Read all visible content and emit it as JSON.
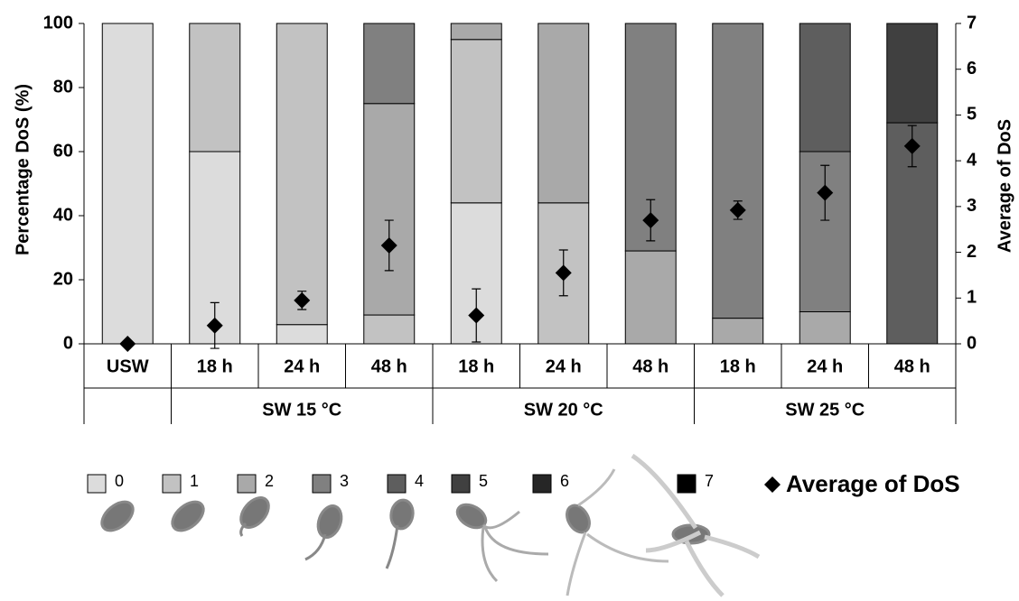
{
  "chart_data": {
    "type": "stacked-bar",
    "y_label": "Percentage DoS (%)",
    "y2_label": "Average of DoS",
    "categories": [
      "USW",
      "18 h",
      "24 h",
      "48 h",
      "18 h",
      "24 h",
      "48 h",
      "18 h",
      "24 h",
      "48 h"
    ],
    "group_labels": [
      null,
      "SW 15 °C",
      "SW 15 °C",
      "SW 15 °C",
      "SW 20 °C",
      "SW 20 °C",
      "SW 20 °C",
      "SW 25 °C",
      "SW 25 °C",
      "SW 25 °C"
    ],
    "ylim": [
      0,
      100
    ],
    "yticks": [
      0,
      20,
      40,
      60,
      80,
      100
    ],
    "y2lim": [
      0,
      7
    ],
    "y2ticks": [
      0,
      1,
      2,
      3,
      4,
      5,
      6,
      7
    ],
    "series": [
      {
        "name": "0",
        "color": "#dcdcdc",
        "values": [
          100,
          60,
          6,
          0,
          44,
          0,
          0,
          0,
          0,
          0
        ]
      },
      {
        "name": "1",
        "color": "#c2c2c2",
        "values": [
          0,
          40,
          94,
          9,
          51,
          44,
          0,
          0,
          0,
          0
        ]
      },
      {
        "name": "2",
        "color": "#a9a9a9",
        "values": [
          0,
          0,
          0,
          66,
          5,
          56,
          29,
          8,
          10,
          0
        ]
      },
      {
        "name": "3",
        "color": "#808080",
        "values": [
          0,
          0,
          0,
          25,
          0,
          0,
          71,
          92,
          50,
          0
        ]
      },
      {
        "name": "4",
        "color": "#5e5e5e",
        "values": [
          0,
          0,
          0,
          0,
          0,
          0,
          0,
          0,
          40,
          69
        ]
      },
      {
        "name": "5",
        "color": "#404040",
        "values": [
          0,
          0,
          0,
          0,
          0,
          0,
          0,
          0,
          0,
          31
        ]
      },
      {
        "name": "6",
        "color": "#262626",
        "values": [
          0,
          0,
          0,
          0,
          0,
          0,
          0,
          0,
          0,
          0
        ]
      },
      {
        "name": "7",
        "color": "#000000",
        "values": [
          0,
          0,
          0,
          0,
          0,
          0,
          0,
          0,
          0,
          0
        ]
      },
      {
        "name": "Average of DoS",
        "color": "#000000",
        "axis": "y2",
        "marker": "diamond",
        "values": [
          0,
          0.4,
          0.95,
          2.15,
          0.62,
          1.55,
          2.7,
          2.92,
          3.3,
          4.32
        ],
        "errors": [
          0,
          0.5,
          0.2,
          0.55,
          0.58,
          0.5,
          0.45,
          0.2,
          0.6,
          0.45
        ]
      }
    ]
  }
}
